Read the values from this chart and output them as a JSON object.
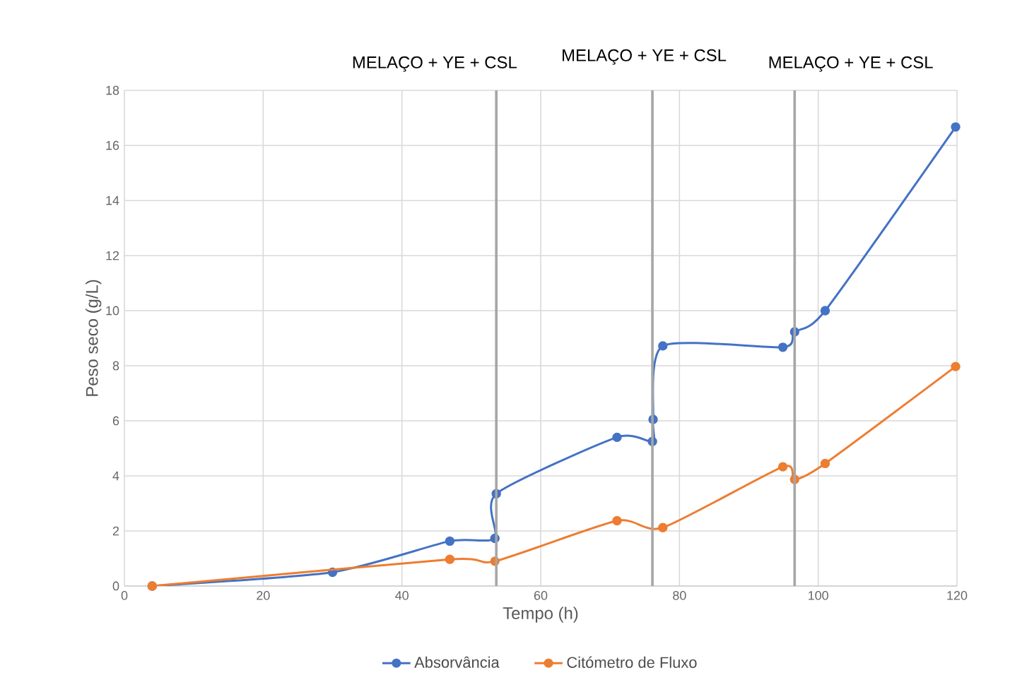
{
  "chart_data": {
    "type": "line",
    "xlabel": "Tempo (h)",
    "ylabel": "Peso seco (g/L)",
    "xlim": [
      0,
      120
    ],
    "xticks": [
      0,
      20,
      40,
      60,
      80,
      100,
      120
    ],
    "ylim": [
      0,
      18
    ],
    "yticks": [
      0,
      2,
      4,
      6,
      8,
      10,
      12,
      14,
      16,
      18
    ],
    "grid": true,
    "legend": "bottom",
    "marker": "circle",
    "line_style": "solid",
    "series": [
      {
        "name": "Absorvância",
        "color": "#4472c4",
        "x": [
          4,
          30,
          46.9,
          53.4,
          53.6,
          71,
          76.1,
          76.2,
          77.6,
          94.9,
          96.6,
          101,
          119.8
        ],
        "values": [
          0,
          0.5,
          1.63,
          1.73,
          3.35,
          5.4,
          5.25,
          6.05,
          8.72,
          8.67,
          9.23,
          10.0,
          16.67
        ]
      },
      {
        "name": "Citómetro de Fluxo",
        "color": "#ed7d31",
        "x": [
          4,
          46.9,
          53.4,
          71,
          77.6,
          94.9,
          96.6,
          101,
          119.8
        ],
        "values": [
          0,
          0.97,
          0.9,
          2.37,
          2.12,
          4.33,
          3.87,
          4.45,
          7.97
        ]
      }
    ],
    "ref_lines": [
      {
        "axis": "x",
        "value": 53.6,
        "label": "MELAÇO + YE + CSL",
        "color": "#a6a6a6"
      },
      {
        "axis": "x",
        "value": 76.1,
        "label": "MELAÇO + YE + CSL",
        "color": "#a6a6a6"
      },
      {
        "axis": "x",
        "value": 96.6,
        "label": "MELAÇO + YE + CSL",
        "color": "#a6a6a6"
      }
    ]
  }
}
